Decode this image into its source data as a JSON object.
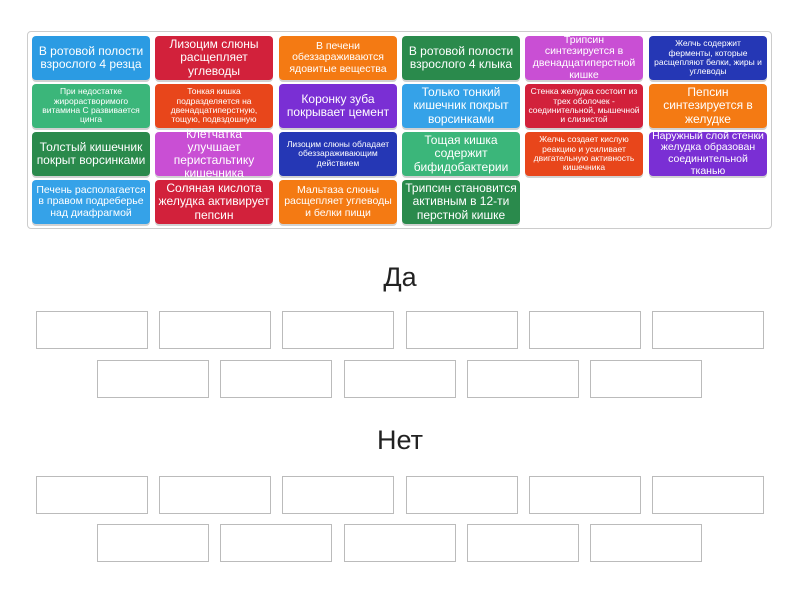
{
  "tiles": [
    {
      "text": "В ротовой полости взрослого 4 резца",
      "color": "#2b9be3",
      "size": "l"
    },
    {
      "text": "Лизоцим слюны расщепляет углеводы",
      "color": "#d2213b",
      "size": "l"
    },
    {
      "text": "В печени обеззараживаются ядовитые вещества",
      "color": "#f47a13",
      "size": "m"
    },
    {
      "text": "В ротовой полости взрослого 4 клыка",
      "color": "#2a8a4c",
      "size": "l"
    },
    {
      "text": "Трипсин синтезируется в двенадцатиперстной кишке",
      "color": "#c94fd4",
      "size": "m"
    },
    {
      "text": "Желчь содержит ферменты, которые расщепляют белки, жиры и углеводы",
      "color": "#2537b5",
      "size": "s"
    },
    {
      "text": "При недостатке жирорастворимого витамина С развивается цинга",
      "color": "#3bb67a",
      "size": "s"
    },
    {
      "text": "Тонкая кишка подразделяется на двенадцатиперстную, тощую, подвздошную",
      "color": "#e8461b",
      "size": "s"
    },
    {
      "text": "Коронку зуба покрывает цемент",
      "color": "#7a2fd4",
      "size": "l"
    },
    {
      "text": "Только тонкий кишечник покрыт ворсинками",
      "color": "#35a2e8",
      "size": "l"
    },
    {
      "text": "Стенка желудка состоит из трех оболочек - соединительной, мышечной и слизистой",
      "color": "#d2213b",
      "size": "s"
    },
    {
      "text": "Пепсин синтезируется в желудке",
      "color": "#f47a13",
      "size": "l"
    },
    {
      "text": "Толстый кишечник покрыт ворсинками",
      "color": "#2a8a4c",
      "size": "l"
    },
    {
      "text": "Клетчатка улучшает перистальтику кишечника",
      "color": "#c94fd4",
      "size": "l"
    },
    {
      "text": "Лизоцим слюны обладает обеззараживающим действием",
      "color": "#2537b5",
      "size": "s"
    },
    {
      "text": "Тощая кишка содержит бифидобактерии",
      "color": "#3bb67a",
      "size": "l"
    },
    {
      "text": "Желчь создает кислую реакцию и усиливает двигательную активность кишечника",
      "color": "#e8461b",
      "size": "s"
    },
    {
      "text": "Наружный слой стенки желудка образован соединительной тканью",
      "color": "#7a2fd4",
      "size": "m"
    },
    {
      "text": "Печень располагается в правом подреберье над диафрагмой",
      "color": "#35a2e8",
      "size": "m"
    },
    {
      "text": "Соляная кислота желудка активирует пепсин",
      "color": "#d2213b",
      "size": "l"
    },
    {
      "text": "Мальтаза слюны расщепляет углеводы и белки пищи",
      "color": "#f47a13",
      "size": "m"
    },
    {
      "text": "Трипсин становится активным в 12-ти перстной кишке",
      "color": "#2a8a4c",
      "size": "l"
    }
  ],
  "groups": [
    {
      "title": "Да"
    },
    {
      "title": "Нет"
    }
  ]
}
